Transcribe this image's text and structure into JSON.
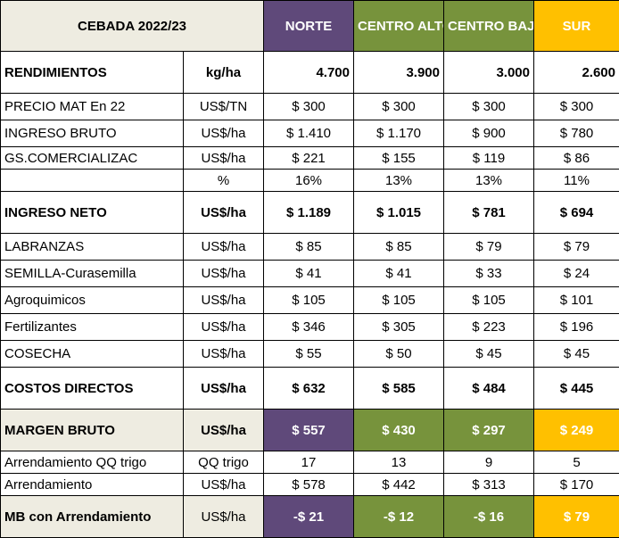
{
  "title": "CEBADA 2022/23",
  "regions": [
    {
      "name": "NORTE",
      "color": "#5f497a"
    },
    {
      "name": "CENTRO ALTO",
      "color": "#77933c"
    },
    {
      "name": "CENTRO BAJO",
      "color": "#77933c"
    },
    {
      "name": "SUR",
      "color": "#ffc000"
    }
  ],
  "rendimientos": {
    "label": "RENDIMIENTOS",
    "unit": "kg/ha",
    "values": [
      "4.700",
      "3.900",
      "3.000",
      "2.600"
    ]
  },
  "precio": {
    "label": "PRECIO  MAT En 22",
    "unit": "US$/TN",
    "values": [
      "$ 300",
      "$ 300",
      "$ 300",
      "$ 300"
    ]
  },
  "ingreso_bruto": {
    "label": "INGRESO BRUTO",
    "unit": "US$/ha",
    "values": [
      "$ 1.410",
      "$ 1.170",
      "$ 900",
      "$ 780"
    ]
  },
  "gs_comercializac": {
    "label": "GS.COMERCIALIZAC",
    "unit": "US$/ha",
    "values": [
      "$ 221",
      "$ 155",
      "$ 119",
      "$ 86"
    ]
  },
  "gs_pct": {
    "label": "",
    "unit": "%",
    "values": [
      "16%",
      "13%",
      "13%",
      "11%"
    ]
  },
  "ingreso_neto": {
    "label": "INGRESO NETO",
    "unit": "US$/ha",
    "values": [
      "$ 1.189",
      "$ 1.015",
      "$ 781",
      "$ 694"
    ]
  },
  "costos": [
    {
      "label": "LABRANZAS",
      "unit": "US$/ha",
      "values": [
        "$ 85",
        "$ 85",
        "$ 79",
        "$ 79"
      ]
    },
    {
      "label": "SEMILLA-Curasemilla",
      "unit": "US$/ha",
      "values": [
        "$ 41",
        "$ 41",
        "$ 33",
        "$ 24"
      ]
    },
    {
      "label": "Agroquimicos",
      "unit": "US$/ha",
      "values": [
        "$ 105",
        "$ 105",
        "$ 105",
        "$ 101"
      ]
    },
    {
      "label": "Fertilizantes",
      "unit": "US$/ha",
      "values": [
        "$ 346",
        "$ 305",
        "$ 223",
        "$ 196"
      ]
    },
    {
      "label": "COSECHA",
      "unit": "US$/ha",
      "values": [
        "$ 55",
        "$ 50",
        "$ 45",
        "$ 45"
      ]
    }
  ],
  "costos_directos": {
    "label": "COSTOS DIRECTOS",
    "unit": "US$/ha",
    "values": [
      "$ 632",
      "$ 585",
      "$ 484",
      "$ 445"
    ]
  },
  "margen_bruto": {
    "label": "MARGEN BRUTO",
    "unit": "US$/ha",
    "values": [
      "$ 557",
      "$ 430",
      "$ 297",
      "$ 249"
    ]
  },
  "arrendamiento_qq": {
    "label": "Arrendamiento QQ trigo",
    "unit": "QQ trigo",
    "values": [
      "17",
      "13",
      "9",
      "5"
    ]
  },
  "arrendamiento": {
    "label": "Arrendamiento",
    "unit": "US$/ha",
    "values": [
      "$ 578",
      "$ 442",
      "$ 313",
      "$ 170"
    ]
  },
  "mb_arrendamiento": {
    "label": "MB con Arrendamiento",
    "unit": "US$/ha",
    "values": [
      "-$ 21",
      "-$ 12",
      "-$ 16",
      "$ 79"
    ]
  }
}
